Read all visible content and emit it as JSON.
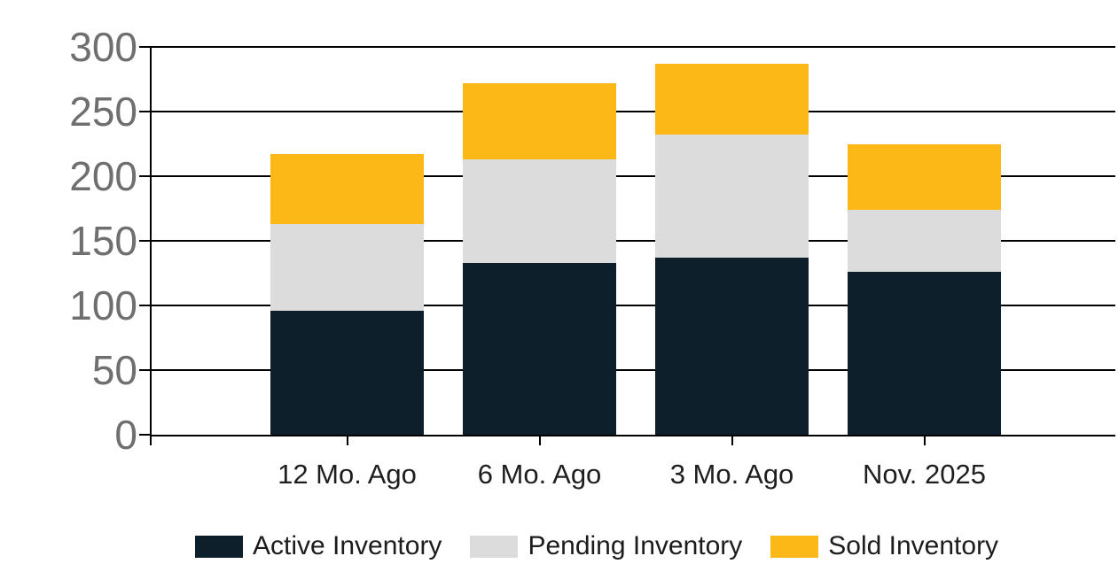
{
  "chart_data": {
    "type": "bar",
    "stacked": true,
    "title": "",
    "xlabel": "",
    "ylabel": "",
    "categories": [
      "12 Mo. Ago",
      "6 Mo. Ago",
      "3 Mo. Ago",
      "Nov. 2025"
    ],
    "series": [
      {
        "name": "Active Inventory",
        "color": "#0d1f2b",
        "values": [
          96,
          133,
          137,
          126
        ]
      },
      {
        "name": "Pending Inventory",
        "color": "#dcdcdc",
        "values": [
          67,
          80,
          95,
          48
        ]
      },
      {
        "name": "Sold Inventory",
        "color": "#fbb817",
        "values": [
          54,
          59,
          55,
          51
        ]
      }
    ],
    "stack_totals": [
      217,
      272,
      287,
      225
    ],
    "ylim": [
      0,
      300
    ],
    "yticks": [
      0,
      50,
      100,
      150,
      200,
      250,
      300
    ],
    "grid": true,
    "gridline_color": "#000000",
    "legend_position": "bottom"
  },
  "colors": {
    "background": "#ffffff",
    "axis": "#000000",
    "y_tick_label": "#6f6f6f",
    "x_tick_label": "#1e1e1e",
    "legend_text": "#1c1c1c"
  }
}
